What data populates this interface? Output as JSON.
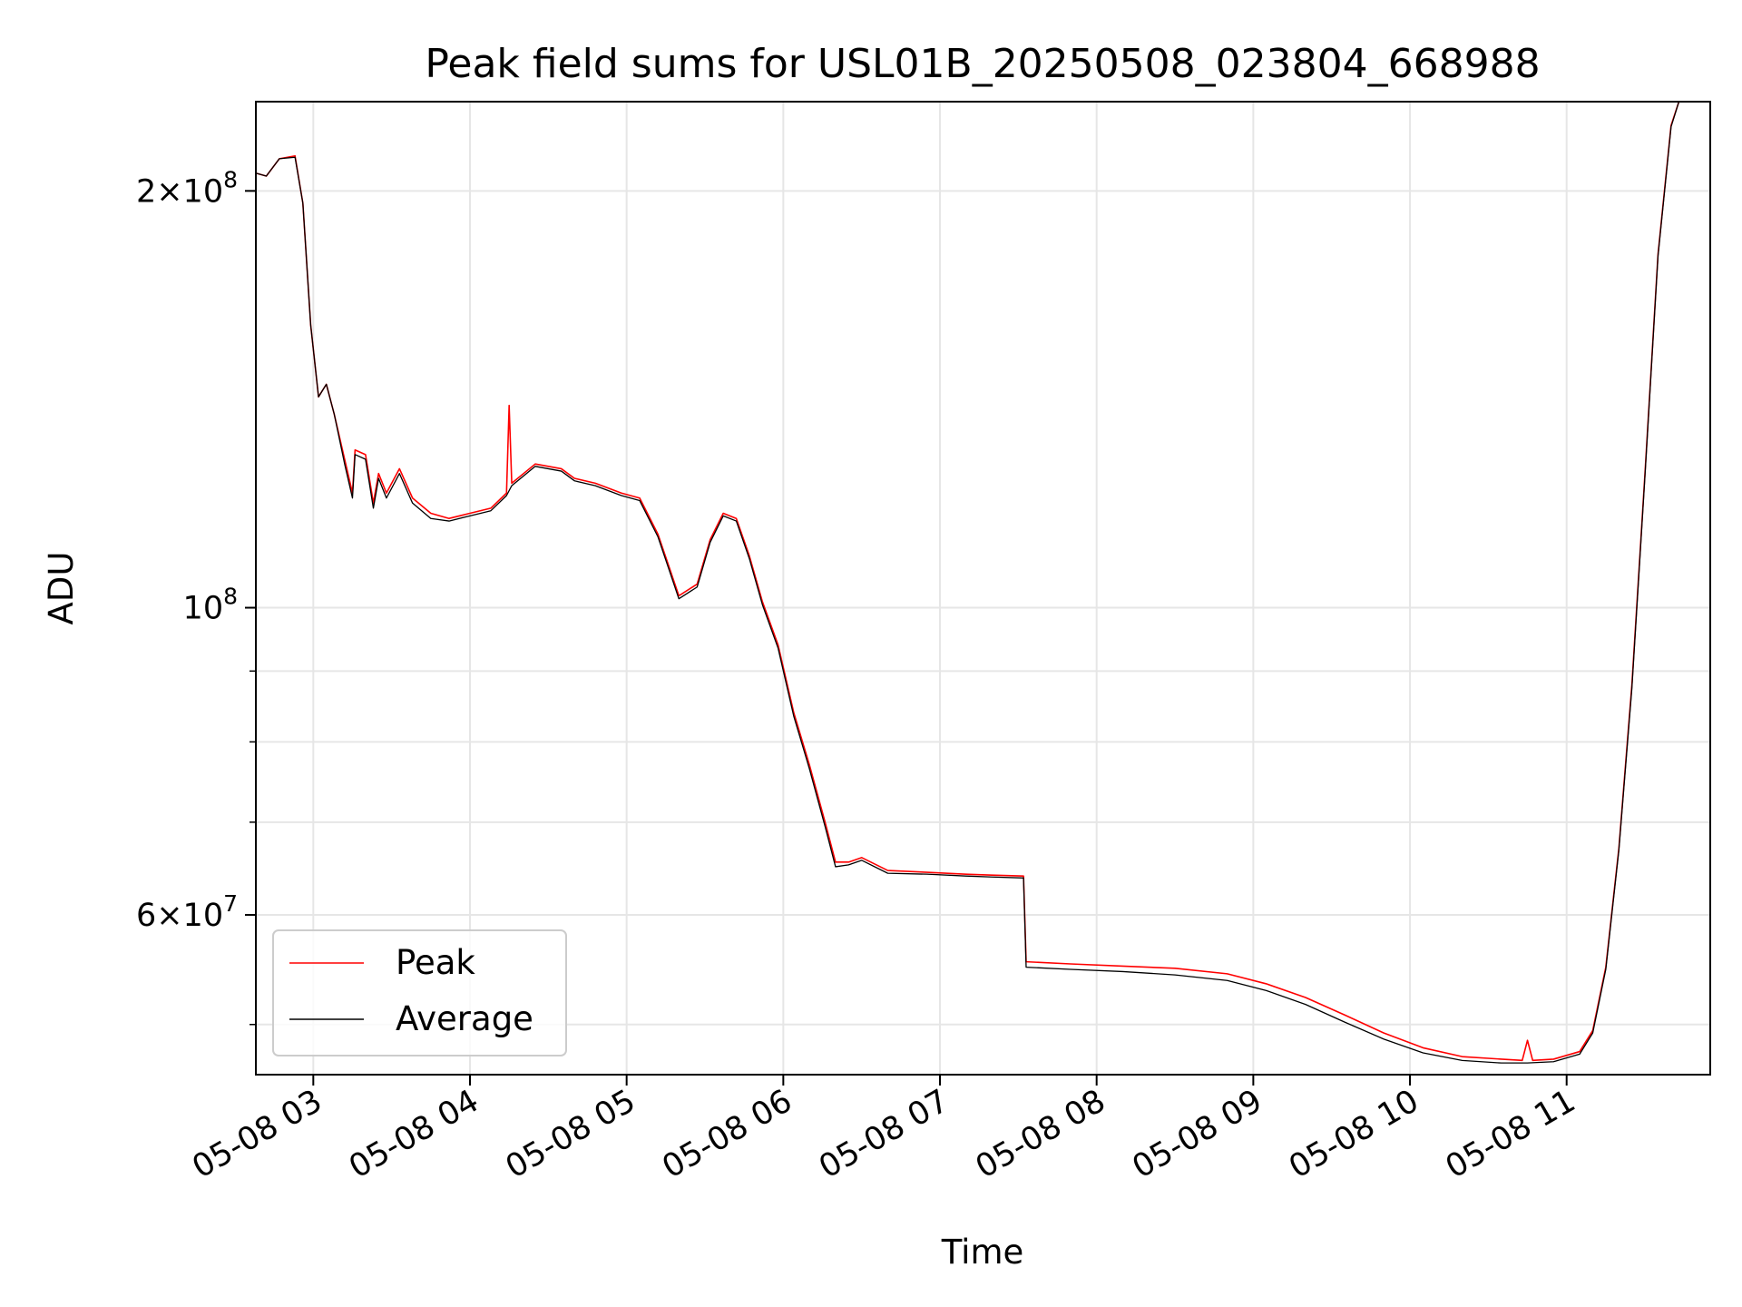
{
  "chart_data": {
    "type": "line",
    "title": "Peak field sums for USL01B_20250508_023804_668988",
    "xlabel": "Time",
    "ylabel": "ADU",
    "x_ticks": [
      "05-08 03",
      "05-08 04",
      "05-08 05",
      "05-08 06",
      "05-08 07",
      "05-08 08",
      "05-08 09",
      "05-08 10",
      "05-08 11"
    ],
    "y_ticks": [
      {
        "value": 200000000,
        "mantissa": "2",
        "exponent": "8"
      },
      {
        "value": 100000000,
        "mantissa": "",
        "exponent": "8"
      },
      {
        "value": 60000000,
        "mantissa": "6",
        "exponent": "7"
      }
    ],
    "yscale": "log",
    "xlim": [
      "2025-05-08 02:38",
      "2025-05-08 11:55"
    ],
    "ylim": [
      46000000,
      232000000
    ],
    "grid": true,
    "legend_position": "lower-left",
    "series": [
      {
        "name": "Peak",
        "color": "#ff0000",
        "points": [
          [
            "2025-05-08 02:38",
            206000000
          ],
          [
            "2025-05-08 02:42",
            205000000
          ],
          [
            "2025-05-08 02:47",
            211000000
          ],
          [
            "2025-05-08 02:53",
            212000000
          ],
          [
            "2025-05-08 02:56",
            196000000
          ],
          [
            "2025-05-08 02:59",
            160000000
          ],
          [
            "2025-05-08 03:02",
            142000000
          ],
          [
            "2025-05-08 03:05",
            145000000
          ],
          [
            "2025-05-08 03:08",
            138000000
          ],
          [
            "2025-05-08 03:12",
            128000000
          ],
          [
            "2025-05-08 03:15",
            121000000
          ],
          [
            "2025-05-08 03:16",
            130000000
          ],
          [
            "2025-05-08 03:20",
            129000000
          ],
          [
            "2025-05-08 03:23",
            119000000
          ],
          [
            "2025-05-08 03:25",
            125000000
          ],
          [
            "2025-05-08 03:28",
            121000000
          ],
          [
            "2025-05-08 03:33",
            126000000
          ],
          [
            "2025-05-08 03:38",
            120000000
          ],
          [
            "2025-05-08 03:45",
            117000000
          ],
          [
            "2025-05-08 03:52",
            116000000
          ],
          [
            "2025-05-08 04:00",
            117000000
          ],
          [
            "2025-05-08 04:08",
            118000000
          ],
          [
            "2025-05-08 04:14",
            121000000
          ],
          [
            "2025-05-08 04:15",
            140000000
          ],
          [
            "2025-05-08 04:16",
            123000000
          ],
          [
            "2025-05-08 04:25",
            127000000
          ],
          [
            "2025-05-08 04:35",
            126000000
          ],
          [
            "2025-05-08 04:40",
            124000000
          ],
          [
            "2025-05-08 04:48",
            123000000
          ],
          [
            "2025-05-08 04:58",
            121000000
          ],
          [
            "2025-05-08 05:05",
            120000000
          ],
          [
            "2025-05-08 05:12",
            113000000
          ],
          [
            "2025-05-08 05:17",
            106000000
          ],
          [
            "2025-05-08 05:20",
            102000000
          ],
          [
            "2025-05-08 05:27",
            104000000
          ],
          [
            "2025-05-08 05:32",
            112000000
          ],
          [
            "2025-05-08 05:37",
            117000000
          ],
          [
            "2025-05-08 05:42",
            116000000
          ],
          [
            "2025-05-08 05:47",
            109000000
          ],
          [
            "2025-05-08 05:52",
            101000000
          ],
          [
            "2025-05-08 05:58",
            94000000
          ],
          [
            "2025-05-08 06:04",
            84000000
          ],
          [
            "2025-05-08 06:10",
            77000000
          ],
          [
            "2025-05-08 06:16",
            70000000
          ],
          [
            "2025-05-08 06:20",
            65500000
          ],
          [
            "2025-05-08 06:25",
            65500000
          ],
          [
            "2025-05-08 06:30",
            66000000
          ],
          [
            "2025-05-08 06:40",
            64600000
          ],
          [
            "2025-05-08 06:55",
            64400000
          ],
          [
            "2025-05-08 07:10",
            64200000
          ],
          [
            "2025-05-08 07:20",
            64100000
          ],
          [
            "2025-05-08 07:32",
            64000000
          ],
          [
            "2025-05-08 07:33",
            55500000
          ],
          [
            "2025-05-08 07:50",
            55300000
          ],
          [
            "2025-05-08 08:10",
            55100000
          ],
          [
            "2025-05-08 08:30",
            54900000
          ],
          [
            "2025-05-08 08:50",
            54400000
          ],
          [
            "2025-05-08 09:05",
            53500000
          ],
          [
            "2025-05-08 09:20",
            52300000
          ],
          [
            "2025-05-08 09:35",
            50800000
          ],
          [
            "2025-05-08 09:50",
            49300000
          ],
          [
            "2025-05-08 10:05",
            48100000
          ],
          [
            "2025-05-08 10:20",
            47400000
          ],
          [
            "2025-05-08 10:35",
            47200000
          ],
          [
            "2025-05-08 10:43",
            47100000
          ],
          [
            "2025-05-08 10:45",
            48700000
          ],
          [
            "2025-05-08 10:47",
            47100000
          ],
          [
            "2025-05-08 10:55",
            47200000
          ],
          [
            "2025-05-08 11:05",
            47800000
          ],
          [
            "2025-05-08 11:10",
            49500000
          ],
          [
            "2025-05-08 11:15",
            55000000
          ],
          [
            "2025-05-08 11:20",
            67000000
          ],
          [
            "2025-05-08 11:25",
            88000000
          ],
          [
            "2025-05-08 11:30",
            125000000
          ],
          [
            "2025-05-08 11:35",
            180000000
          ],
          [
            "2025-05-08 11:40",
            223000000
          ],
          [
            "2025-05-08 11:43",
            232000000
          ]
        ]
      },
      {
        "name": "Average",
        "color": "#000000",
        "points": [
          [
            "2025-05-08 02:38",
            206000000
          ],
          [
            "2025-05-08 02:42",
            205000000
          ],
          [
            "2025-05-08 02:47",
            211000000
          ],
          [
            "2025-05-08 02:53",
            211500000
          ],
          [
            "2025-05-08 02:56",
            196000000
          ],
          [
            "2025-05-08 02:59",
            160000000
          ],
          [
            "2025-05-08 03:02",
            142000000
          ],
          [
            "2025-05-08 03:05",
            145000000
          ],
          [
            "2025-05-08 03:08",
            138000000
          ],
          [
            "2025-05-08 03:12",
            127000000
          ],
          [
            "2025-05-08 03:15",
            120000000
          ],
          [
            "2025-05-08 03:16",
            129000000
          ],
          [
            "2025-05-08 03:20",
            128000000
          ],
          [
            "2025-05-08 03:23",
            118000000
          ],
          [
            "2025-05-08 03:25",
            124000000
          ],
          [
            "2025-05-08 03:28",
            120000000
          ],
          [
            "2025-05-08 03:33",
            125000000
          ],
          [
            "2025-05-08 03:38",
            119000000
          ],
          [
            "2025-05-08 03:45",
            116000000
          ],
          [
            "2025-05-08 03:52",
            115500000
          ],
          [
            "2025-05-08 04:00",
            116500000
          ],
          [
            "2025-05-08 04:08",
            117500000
          ],
          [
            "2025-05-08 04:14",
            120500000
          ],
          [
            "2025-05-08 04:16",
            122500000
          ],
          [
            "2025-05-08 04:25",
            126500000
          ],
          [
            "2025-05-08 04:35",
            125500000
          ],
          [
            "2025-05-08 04:40",
            123500000
          ],
          [
            "2025-05-08 04:48",
            122500000
          ],
          [
            "2025-05-08 04:58",
            120500000
          ],
          [
            "2025-05-08 05:05",
            119500000
          ],
          [
            "2025-05-08 05:12",
            112500000
          ],
          [
            "2025-05-08 05:17",
            105500000
          ],
          [
            "2025-05-08 05:20",
            101500000
          ],
          [
            "2025-05-08 05:27",
            103500000
          ],
          [
            "2025-05-08 05:32",
            111500000
          ],
          [
            "2025-05-08 05:37",
            116500000
          ],
          [
            "2025-05-08 05:42",
            115500000
          ],
          [
            "2025-05-08 05:47",
            108500000
          ],
          [
            "2025-05-08 05:52",
            100500000
          ],
          [
            "2025-05-08 05:58",
            93500000
          ],
          [
            "2025-05-08 06:04",
            83500000
          ],
          [
            "2025-05-08 06:10",
            76500000
          ],
          [
            "2025-05-08 06:16",
            69500000
          ],
          [
            "2025-05-08 06:20",
            65000000
          ],
          [
            "2025-05-08 06:25",
            65200000
          ],
          [
            "2025-05-08 06:30",
            65700000
          ],
          [
            "2025-05-08 06:40",
            64300000
          ],
          [
            "2025-05-08 06:55",
            64200000
          ],
          [
            "2025-05-08 07:10",
            64000000
          ],
          [
            "2025-05-08 07:20",
            63900000
          ],
          [
            "2025-05-08 07:32",
            63800000
          ],
          [
            "2025-05-08 07:33",
            55000000
          ],
          [
            "2025-05-08 07:50",
            54800000
          ],
          [
            "2025-05-08 08:10",
            54600000
          ],
          [
            "2025-05-08 08:30",
            54300000
          ],
          [
            "2025-05-08 08:50",
            53800000
          ],
          [
            "2025-05-08 09:05",
            52900000
          ],
          [
            "2025-05-08 09:20",
            51700000
          ],
          [
            "2025-05-08 09:35",
            50200000
          ],
          [
            "2025-05-08 09:50",
            48800000
          ],
          [
            "2025-05-08 10:05",
            47700000
          ],
          [
            "2025-05-08 10:20",
            47100000
          ],
          [
            "2025-05-08 10:35",
            46900000
          ],
          [
            "2025-05-08 10:45",
            46900000
          ],
          [
            "2025-05-08 10:55",
            47000000
          ],
          [
            "2025-05-08 11:05",
            47600000
          ],
          [
            "2025-05-08 11:10",
            49300000
          ],
          [
            "2025-05-08 11:15",
            54800000
          ],
          [
            "2025-05-08 11:20",
            66800000
          ],
          [
            "2025-05-08 11:25",
            87500000
          ],
          [
            "2025-05-08 11:30",
            124500000
          ],
          [
            "2025-05-08 11:35",
            179500000
          ],
          [
            "2025-05-08 11:40",
            222500000
          ],
          [
            "2025-05-08 11:43",
            232000000
          ]
        ]
      }
    ]
  }
}
